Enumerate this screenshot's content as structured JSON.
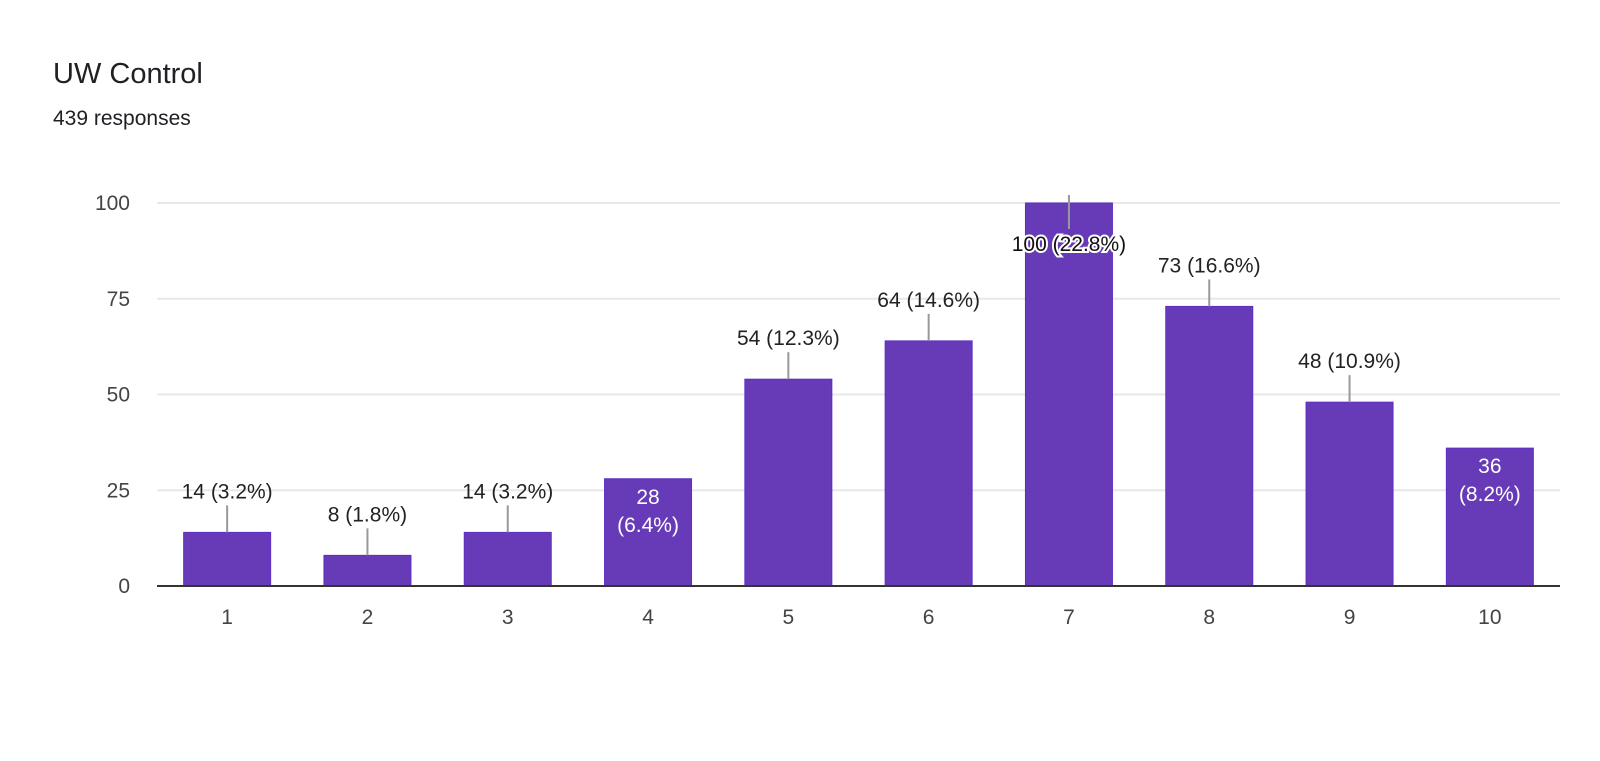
{
  "header": {
    "title": "UW Control",
    "subtitle": "439 responses"
  },
  "colors": {
    "bar": "#673ab7",
    "bar_edge": "#5e2fc4",
    "grid": "#e8e8e8",
    "axis": "#333333",
    "leader": "#999999"
  },
  "chart_data": {
    "type": "bar",
    "title": "UW Control",
    "subtitle": "439 responses",
    "categories": [
      "1",
      "2",
      "3",
      "4",
      "5",
      "6",
      "7",
      "8",
      "9",
      "10"
    ],
    "values": [
      14,
      8,
      14,
      28,
      54,
      64,
      100,
      73,
      48,
      36
    ],
    "percents": [
      "3.2%",
      "1.8%",
      "3.2%",
      "6.4%",
      "12.3%",
      "14.6%",
      "22.8%",
      "16.6%",
      "10.9%",
      "8.2%"
    ],
    "data_labels": [
      "14 (3.2%)",
      "8 (1.8%)",
      "14 (3.2%)",
      "28 (6.4%)",
      "54 (12.3%)",
      "64 (14.6%)",
      "100 (22.8%)",
      "73 (16.6%)",
      "48 (10.9%)",
      "36 (8.2%)"
    ],
    "label_inside": [
      false,
      false,
      false,
      true,
      false,
      false,
      false,
      false,
      false,
      true
    ],
    "yticks": [
      0,
      25,
      50,
      75,
      100
    ],
    "ylim": [
      0,
      100
    ],
    "xlabel": "",
    "ylabel": "",
    "grid": true,
    "legend": "none"
  }
}
